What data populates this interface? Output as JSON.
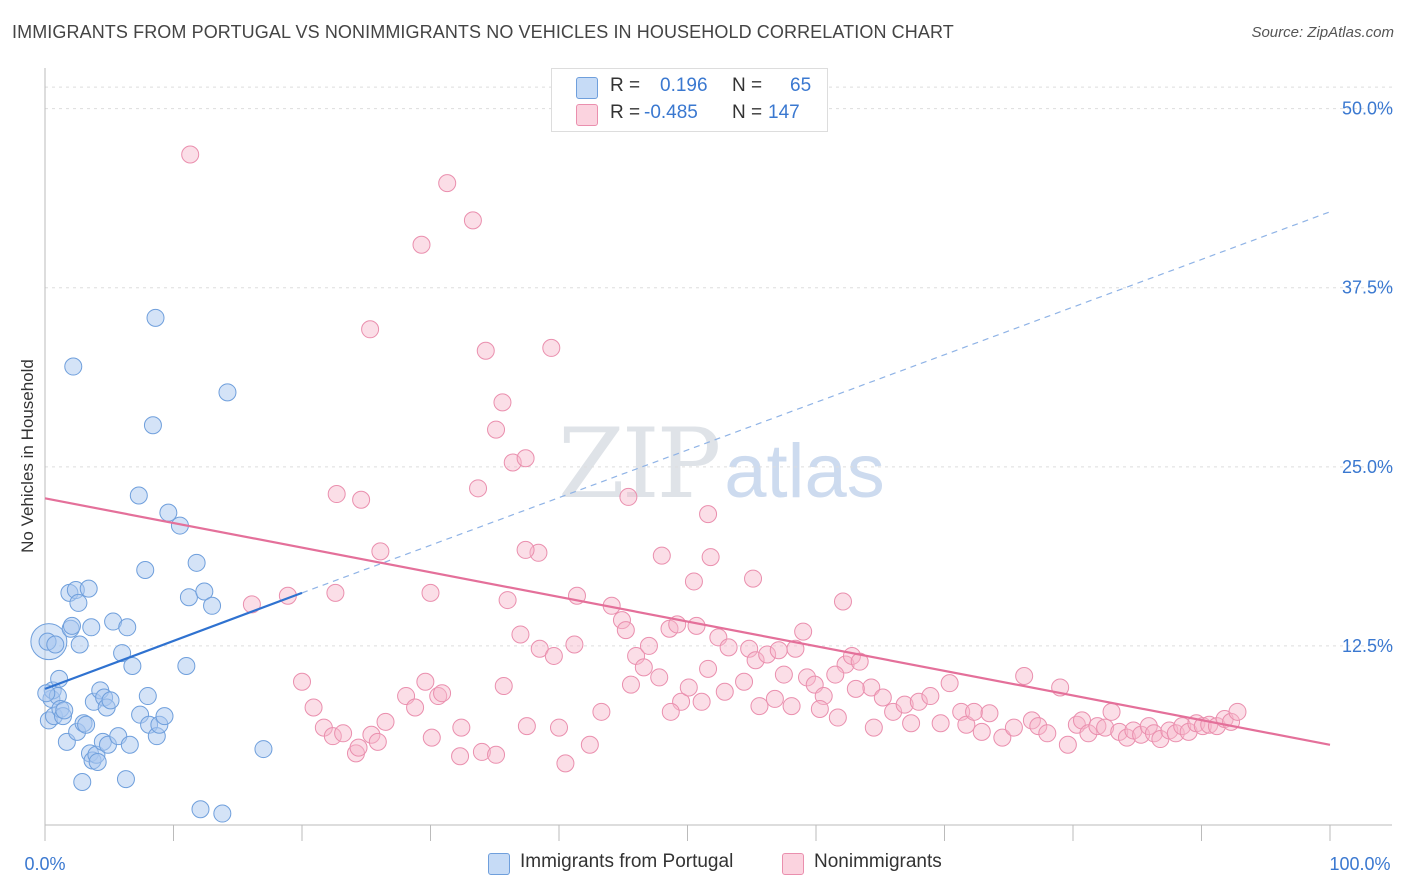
{
  "header": {
    "title": "IMMIGRANTS FROM PORTUGAL VS NONIMMIGRANTS NO VEHICLES IN HOUSEHOLD CORRELATION CHART",
    "source": "Source: ZipAtlas.com"
  },
  "watermark": {
    "zip": "ZIP",
    "atlas": "atlas"
  },
  "stats": {
    "series1": {
      "r_label": "R =",
      "r_value": "0.196",
      "n_label": "N =",
      "n_value": "65",
      "color": "#a9c8f0"
    },
    "series2": {
      "r_label": "R =",
      "r_value": "-0.485",
      "n_label": "N =",
      "n_value": "147",
      "color": "#f6b5c9"
    }
  },
  "legend": {
    "series1": "Immigrants from Portugal",
    "series2": "Nonimmigrants"
  },
  "colors": {
    "blue_fill": "#a9c8f0",
    "blue_stroke": "#6f9fdc",
    "blue_line": "#2f72d0",
    "pink_fill": "#f6b5c9",
    "pink_stroke": "#ea8fae",
    "pink_line": "#e4709a",
    "tick_label": "#3a78d0",
    "grid": "#dddddd"
  },
  "chart_data": {
    "type": "scatter",
    "title": "IMMIGRANTS FROM PORTUGAL VS NONIMMIGRANTS NO VEHICLES IN HOUSEHOLD CORRELATION CHART",
    "xlabel": "",
    "ylabel": "No Vehicles in Household",
    "xlim": [
      0,
      100
    ],
    "ylim": [
      0,
      52
    ],
    "x_tick_labels": [
      "0.0%",
      "100.0%"
    ],
    "y_ticks": [
      12.5,
      25.0,
      37.5,
      50.0
    ],
    "y_tick_labels": [
      "12.5%",
      "25.0%",
      "37.5%",
      "50.0%"
    ],
    "grid": true,
    "legend_position": "bottom-center",
    "series": [
      {
        "name": "Immigrants from Portugal",
        "r": 0.196,
        "n": 65,
        "trend": {
          "x": [
            0,
            20
          ],
          "y": [
            9.5,
            16.2
          ]
        },
        "trend_extension": {
          "x": [
            20,
            100
          ],
          "y": [
            16.2,
            42.8
          ]
        },
        "points": [
          [
            0.2,
            12.8
          ],
          [
            0.3,
            7.3
          ],
          [
            0.5,
            8.8
          ],
          [
            0.6,
            9.4
          ],
          [
            0.7,
            7.6
          ],
          [
            0.8,
            12.6
          ],
          [
            1.0,
            9.0
          ],
          [
            1.1,
            10.2
          ],
          [
            1.2,
            8.1
          ],
          [
            1.4,
            7.6
          ],
          [
            1.5,
            8.0
          ],
          [
            1.7,
            5.8
          ],
          [
            1.9,
            16.2
          ],
          [
            2.0,
            13.7
          ],
          [
            2.1,
            13.9
          ],
          [
            2.2,
            32.0
          ],
          [
            2.4,
            16.4
          ],
          [
            2.5,
            6.5
          ],
          [
            2.6,
            15.5
          ],
          [
            2.7,
            12.6
          ],
          [
            2.9,
            3.0
          ],
          [
            3.0,
            7.1
          ],
          [
            3.2,
            7.0
          ],
          [
            3.4,
            16.5
          ],
          [
            3.5,
            5.0
          ],
          [
            3.6,
            13.8
          ],
          [
            3.7,
            4.5
          ],
          [
            3.8,
            8.6
          ],
          [
            4.0,
            4.9
          ],
          [
            4.1,
            4.4
          ],
          [
            4.3,
            9.4
          ],
          [
            4.5,
            5.8
          ],
          [
            4.6,
            8.9
          ],
          [
            4.8,
            8.2
          ],
          [
            4.9,
            5.6
          ],
          [
            5.1,
            8.7
          ],
          [
            5.3,
            14.2
          ],
          [
            5.7,
            6.2
          ],
          [
            6.0,
            12.0
          ],
          [
            6.3,
            3.2
          ],
          [
            6.4,
            13.8
          ],
          [
            6.6,
            5.6
          ],
          [
            6.8,
            11.1
          ],
          [
            7.3,
            23.0
          ],
          [
            7.4,
            7.7
          ],
          [
            7.8,
            17.8
          ],
          [
            8.0,
            9.0
          ],
          [
            8.1,
            7.0
          ],
          [
            8.4,
            27.9
          ],
          [
            8.6,
            35.4
          ],
          [
            8.7,
            6.2
          ],
          [
            8.9,
            7.0
          ],
          [
            9.3,
            7.6
          ],
          [
            9.6,
            21.8
          ],
          [
            10.5,
            20.9
          ],
          [
            11.0,
            11.1
          ],
          [
            11.2,
            15.9
          ],
          [
            11.8,
            18.3
          ],
          [
            12.1,
            1.1
          ],
          [
            12.4,
            16.3
          ],
          [
            13.0,
            15.3
          ],
          [
            13.8,
            0.8
          ],
          [
            14.2,
            30.2
          ],
          [
            17.0,
            5.3
          ],
          [
            0.1,
            9.2
          ]
        ]
      },
      {
        "name": "Nonimmigrants",
        "r": -0.485,
        "n": 147,
        "trend": {
          "x": [
            0,
            100
          ],
          "y": [
            22.8,
            5.6
          ]
        },
        "points": [
          [
            11.3,
            46.8
          ],
          [
            25.3,
            34.6
          ],
          [
            29.3,
            40.5
          ],
          [
            31.3,
            44.8
          ],
          [
            33.3,
            42.2
          ],
          [
            34.3,
            33.1
          ],
          [
            35.1,
            27.6
          ],
          [
            35.6,
            29.5
          ],
          [
            36.4,
            25.3
          ],
          [
            37.4,
            25.6
          ],
          [
            38.4,
            19.0
          ],
          [
            39.4,
            33.3
          ],
          [
            22.7,
            23.1
          ],
          [
            24.6,
            22.7
          ],
          [
            26.1,
            19.1
          ],
          [
            30.0,
            16.2
          ],
          [
            33.7,
            23.5
          ],
          [
            36.0,
            15.7
          ],
          [
            37.4,
            19.2
          ],
          [
            41.4,
            16.0
          ],
          [
            45.4,
            22.9
          ],
          [
            48.0,
            18.8
          ],
          [
            50.5,
            17.0
          ],
          [
            51.6,
            21.7
          ],
          [
            51.8,
            18.7
          ],
          [
            55.1,
            17.2
          ],
          [
            62.1,
            15.6
          ],
          [
            22.6,
            16.2
          ],
          [
            18.9,
            16.0
          ],
          [
            16.1,
            15.4
          ],
          [
            29.6,
            10.0
          ],
          [
            30.1,
            6.1
          ],
          [
            30.6,
            9.0
          ],
          [
            32.3,
            4.8
          ],
          [
            34.0,
            5.1
          ],
          [
            35.1,
            4.9
          ],
          [
            37.5,
            6.9
          ],
          [
            40.0,
            6.8
          ],
          [
            40.5,
            4.3
          ],
          [
            42.4,
            5.6
          ],
          [
            44.1,
            15.3
          ],
          [
            44.9,
            14.3
          ],
          [
            45.2,
            13.6
          ],
          [
            46.0,
            11.8
          ],
          [
            46.6,
            11.0
          ],
          [
            47.8,
            10.3
          ],
          [
            48.6,
            13.7
          ],
          [
            49.2,
            14.0
          ],
          [
            49.5,
            8.6
          ],
          [
            50.1,
            9.6
          ],
          [
            51.1,
            8.6
          ],
          [
            51.6,
            10.9
          ],
          [
            52.4,
            13.1
          ],
          [
            53.2,
            12.4
          ],
          [
            54.4,
            10.0
          ],
          [
            54.8,
            12.3
          ],
          [
            55.3,
            11.5
          ],
          [
            56.2,
            11.9
          ],
          [
            56.8,
            8.8
          ],
          [
            57.5,
            10.5
          ],
          [
            58.4,
            12.3
          ],
          [
            59.0,
            13.5
          ],
          [
            59.3,
            10.3
          ],
          [
            59.9,
            9.8
          ],
          [
            60.6,
            9.0
          ],
          [
            61.7,
            7.5
          ],
          [
            62.3,
            11.2
          ],
          [
            62.8,
            11.8
          ],
          [
            63.4,
            11.4
          ],
          [
            64.3,
            9.6
          ],
          [
            64.5,
            6.8
          ],
          [
            65.2,
            8.9
          ],
          [
            66.0,
            7.9
          ],
          [
            66.9,
            8.4
          ],
          [
            67.4,
            7.1
          ],
          [
            68.0,
            8.6
          ],
          [
            68.9,
            9.0
          ],
          [
            69.7,
            7.1
          ],
          [
            70.4,
            9.9
          ],
          [
            71.3,
            7.9
          ],
          [
            71.7,
            7.0
          ],
          [
            72.3,
            7.9
          ],
          [
            72.9,
            6.5
          ],
          [
            73.5,
            7.8
          ],
          [
            74.5,
            6.1
          ],
          [
            75.4,
            6.8
          ],
          [
            76.2,
            10.4
          ],
          [
            76.8,
            7.3
          ],
          [
            77.3,
            6.9
          ],
          [
            78.0,
            6.4
          ],
          [
            79.0,
            9.6
          ],
          [
            79.6,
            5.6
          ],
          [
            80.3,
            7.0
          ],
          [
            80.7,
            7.3
          ],
          [
            81.2,
            6.4
          ],
          [
            81.9,
            6.9
          ],
          [
            82.5,
            6.8
          ],
          [
            83.0,
            7.9
          ],
          [
            83.6,
            6.5
          ],
          [
            84.2,
            6.1
          ],
          [
            84.7,
            6.6
          ],
          [
            85.3,
            6.3
          ],
          [
            85.9,
            6.9
          ],
          [
            86.3,
            6.4
          ],
          [
            86.8,
            6.0
          ],
          [
            87.5,
            6.6
          ],
          [
            88.0,
            6.4
          ],
          [
            88.5,
            6.9
          ],
          [
            89.0,
            6.5
          ],
          [
            89.6,
            7.1
          ],
          [
            90.1,
            6.9
          ],
          [
            90.6,
            7.0
          ],
          [
            91.2,
            6.9
          ],
          [
            91.8,
            7.4
          ],
          [
            92.3,
            7.2
          ],
          [
            92.8,
            7.9
          ],
          [
            20.0,
            10.0
          ],
          [
            20.9,
            8.2
          ],
          [
            21.7,
            6.8
          ],
          [
            22.4,
            6.2
          ],
          [
            23.2,
            6.4
          ],
          [
            24.2,
            5.0
          ],
          [
            24.4,
            5.4
          ],
          [
            25.4,
            6.3
          ],
          [
            25.9,
            5.8
          ],
          [
            26.5,
            7.2
          ],
          [
            28.1,
            9.0
          ],
          [
            28.8,
            8.2
          ],
          [
            30.9,
            9.2
          ],
          [
            32.4,
            6.8
          ],
          [
            35.7,
            9.7
          ],
          [
            37.0,
            13.3
          ],
          [
            38.5,
            12.3
          ],
          [
            39.6,
            11.8
          ],
          [
            41.2,
            12.6
          ],
          [
            43.3,
            7.9
          ],
          [
            45.6,
            9.8
          ],
          [
            47.0,
            12.5
          ],
          [
            48.7,
            7.9
          ],
          [
            50.7,
            13.9
          ],
          [
            52.9,
            9.3
          ],
          [
            55.6,
            8.3
          ],
          [
            57.1,
            12.2
          ],
          [
            58.1,
            8.3
          ],
          [
            60.3,
            8.1
          ],
          [
            61.5,
            10.5
          ],
          [
            63.1,
            9.5
          ]
        ]
      }
    ]
  }
}
